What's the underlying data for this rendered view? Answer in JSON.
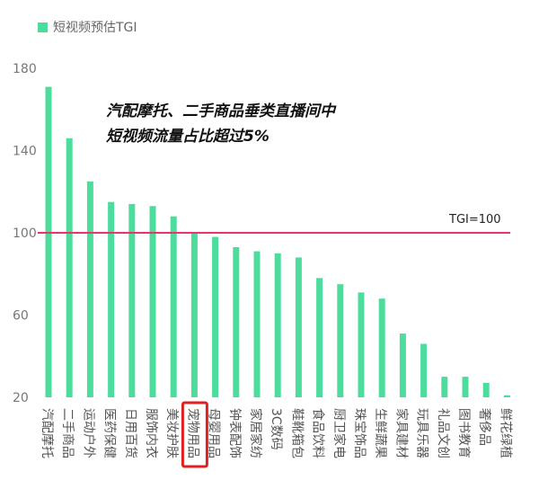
{
  "chart_data": {
    "type": "bar",
    "legend": "短视频预估TGI",
    "legend_position": "top-left",
    "annotation": [
      "汽配摩托、二手商品垂类直播间中",
      "短视频流量占比超过5%"
    ],
    "categories": [
      "汽配摩托",
      "二手商品",
      "运动户外",
      "医药保健",
      "日用百货",
      "服饰内衣",
      "美妆护肤",
      "宠物用品",
      "母婴用品",
      "钟表配饰",
      "家居家纺",
      "3C数码",
      "鞋靴箱包",
      "食品饮料",
      "厨卫家电",
      "珠宝饰品",
      "生鲜蔬果",
      "家具建材",
      "玩具乐器",
      "礼品文创",
      "图书教育",
      "奢侈品",
      "鲜花绿植"
    ],
    "values": [
      171,
      146,
      125,
      115,
      114,
      113,
      108,
      100,
      98,
      93,
      91,
      90,
      88,
      78,
      75,
      71,
      68,
      51,
      46,
      30,
      30,
      27,
      21
    ],
    "highlighted_category": "宠物用品",
    "ylim": [
      20,
      180
    ],
    "yticks": [
      20,
      60,
      100,
      140,
      180
    ],
    "reference_line": {
      "value": 100,
      "label": "TGI=100"
    },
    "grid": false,
    "colors": {
      "bar": "#4cdc9c",
      "reference_line": "#e8336b",
      "highlight_box": "#e02020"
    }
  }
}
